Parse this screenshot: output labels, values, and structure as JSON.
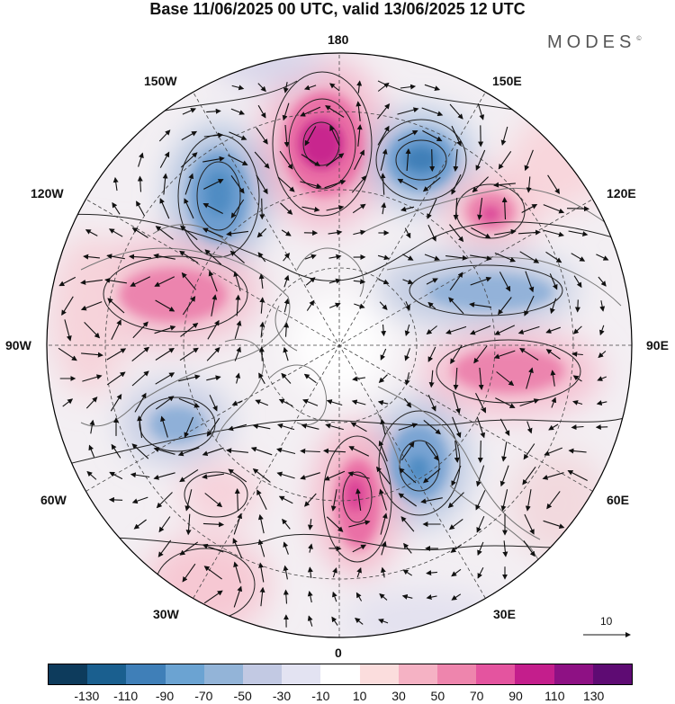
{
  "title": "Base 11/06/2025 00 UTC, valid 13/06/2025 12 UTC",
  "brand": "MODES",
  "brand_mark": "©",
  "longitude_labels": {
    "n180": "180",
    "n150w": "150W",
    "n150e": "150E",
    "n120w": "120W",
    "n120e": "120E",
    "n90w": "90W",
    "n90e": "90E",
    "n60w": "60W",
    "n60e": "60E",
    "n30w": "30W",
    "n30e": "30E",
    "n0": "0"
  },
  "reference_vector": "10",
  "colorbar": {
    "colors": [
      "#0d3b5c",
      "#1a5f8f",
      "#3f7fb8",
      "#6ba3d2",
      "#93b4d8",
      "#c2c9e3",
      "#e3e3f2",
      "#ffffff",
      "#fbdddd",
      "#f5b2c4",
      "#ee85ad",
      "#e4549f",
      "#c41e8c",
      "#8e1184",
      "#5e0b73"
    ],
    "ticks": [
      "-130",
      "-110",
      "-90",
      "-70",
      "-50",
      "-30",
      "-10",
      "10",
      "30",
      "50",
      "70",
      "90",
      "110",
      "130"
    ]
  },
  "anomaly_centers": [
    {
      "name": "center-180-positive",
      "lon": 170,
      "value": 120
    },
    {
      "name": "center-150e-negative",
      "lon": -150,
      "value": -100
    },
    {
      "name": "center-150w-negative",
      "lon": 135,
      "value": -90
    },
    {
      "name": "center-120e-positive",
      "lon": -125,
      "value": 80
    },
    {
      "name": "center-100w-positive",
      "lon": 100,
      "value": 60
    },
    {
      "name": "center-100e-negative",
      "lon": -95,
      "value": -50
    },
    {
      "name": "center-80e-positive",
      "lon": -80,
      "value": 70
    },
    {
      "name": "center-70w-negative",
      "lon": 70,
      "value": -60
    },
    {
      "name": "center-30e-negative",
      "lon": -30,
      "value": -80
    },
    {
      "name": "center-0-positive",
      "lon": 5,
      "value": 90
    },
    {
      "name": "center-30w-positive",
      "lon": 35,
      "value": 40
    },
    {
      "name": "center-45w-positive",
      "lon": 50,
      "value": 40
    }
  ]
}
